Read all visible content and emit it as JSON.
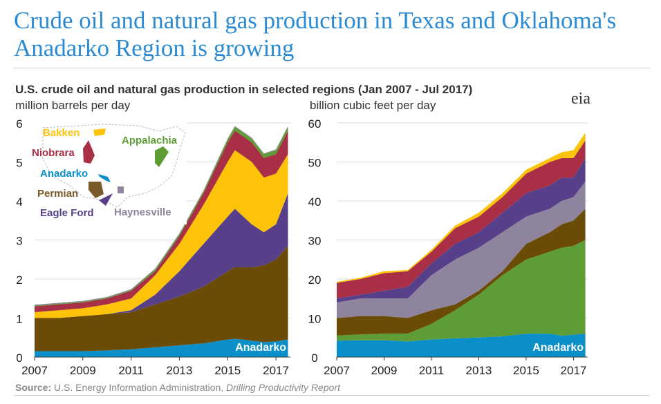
{
  "headline": "Crude oil and natural gas production in Texas and Oklahoma's Anadarko Region is growing",
  "logo": "eia",
  "source": {
    "label": "Source:",
    "text": " U.S. Energy Information Administration, ",
    "italic": "Drilling Productivity Report"
  },
  "colors": {
    "Anadarko": "#0a8fc9",
    "Permian": "#6b4c07",
    "Eagle Ford": "#574089",
    "Bakken": "#fdc309",
    "Niobrara": "#a82f45",
    "Appalachia": "#5e9c35",
    "Haynesville": "#8f849e"
  },
  "map_labels": [
    "Bakken",
    "Niobrara",
    "Anadarko",
    "Permian",
    "Eagle Ford",
    "Appalachia",
    "Haynesville"
  ],
  "chart_data": [
    {
      "type": "area",
      "stacked": true,
      "title": "U.S. crude oil and natural gas production in selected regions (Jan 2007 - Jul 2017)",
      "ylabel": "million barrels per day",
      "ylim": [
        0,
        6
      ],
      "yticks": [
        "0",
        "1",
        "2",
        "3",
        "4",
        "5",
        "6"
      ],
      "xticks": [
        "2007",
        "2009",
        "2011",
        "2013",
        "2015",
        "2017"
      ],
      "xlim": [
        2007,
        2017.6
      ],
      "annotation": "Anadarko",
      "x": [
        2007,
        2008,
        2009,
        2010,
        2011,
        2012,
        2013,
        2014,
        2015,
        2015.3,
        2016,
        2016.5,
        2017,
        2017.5
      ],
      "series": [
        {
          "name": "Anadarko",
          "values": [
            0.15,
            0.15,
            0.15,
            0.17,
            0.2,
            0.25,
            0.3,
            0.35,
            0.45,
            0.47,
            0.42,
            0.38,
            0.4,
            0.45
          ]
        },
        {
          "name": "Permian",
          "values": [
            0.85,
            0.85,
            0.9,
            0.93,
            0.95,
            1.1,
            1.25,
            1.45,
            1.75,
            1.83,
            1.88,
            1.97,
            2.1,
            2.4
          ]
        },
        {
          "name": "Eagle Ford",
          "values": [
            0,
            0,
            0,
            0,
            0.05,
            0.25,
            0.65,
            1.1,
            1.4,
            1.5,
            1.1,
            0.85,
            0.9,
            1.35
          ]
        },
        {
          "name": "Bakken",
          "values": [
            0.15,
            0.2,
            0.2,
            0.25,
            0.3,
            0.5,
            0.7,
            1.0,
            1.4,
            1.5,
            1.6,
            1.4,
            1.3,
            1.0
          ]
        },
        {
          "name": "Niobrara",
          "values": [
            0.15,
            0.15,
            0.15,
            0.15,
            0.2,
            0.1,
            0.2,
            0.3,
            0.5,
            0.5,
            0.5,
            0.5,
            0.5,
            0.6
          ]
        },
        {
          "name": "Appalachia",
          "values": [
            0.02,
            0.02,
            0.02,
            0.02,
            0.02,
            0.05,
            0.05,
            0.05,
            0.08,
            0.1,
            0.1,
            0.1,
            0.1,
            0.1
          ]
        },
        {
          "name": "Haynesville",
          "values": [
            0.02,
            0.02,
            0.02,
            0.02,
            0.02,
            0.02,
            0.02,
            0.02,
            0.02,
            0.02,
            0.02,
            0.02,
            0.02,
            0.02
          ]
        }
      ]
    },
    {
      "type": "area",
      "stacked": true,
      "ylabel": "billion cubic feet per day",
      "ylim": [
        0,
        60
      ],
      "yticks": [
        "0",
        "10",
        "20",
        "30",
        "40",
        "50",
        "60"
      ],
      "xticks": [
        "2007",
        "2009",
        "2011",
        "2013",
        "2015",
        "2017"
      ],
      "xlim": [
        2007,
        2017.6
      ],
      "annotation": "Anadarko",
      "x": [
        2007,
        2008,
        2009,
        2010,
        2011,
        2012,
        2013,
        2014,
        2015,
        2016,
        2016.5,
        2017,
        2017.5
      ],
      "series": [
        {
          "name": "Anadarko",
          "values": [
            4.2,
            4.3,
            4.3,
            4.0,
            4.5,
            4.8,
            5.0,
            5.3,
            6.0,
            6.0,
            5.5,
            5.7,
            6.0
          ]
        },
        {
          "name": "Appalachia",
          "values": [
            1.3,
            1.5,
            1.7,
            2.0,
            4.0,
            7.2,
            11,
            15.7,
            19,
            21,
            22.5,
            22.8,
            24
          ]
        },
        {
          "name": "Permian",
          "values": [
            4.5,
            4.7,
            4.5,
            4,
            3.5,
            1.5,
            1,
            1,
            4,
            5,
            6,
            6.5,
            8
          ]
        },
        {
          "name": "Haynesville",
          "values": [
            4,
            4.5,
            4.5,
            5,
            9,
            11.5,
            11,
            10,
            7,
            6,
            6,
            6,
            7
          ]
        },
        {
          "name": "Eagle Ford",
          "values": [
            1,
            1,
            2,
            3,
            3,
            4,
            4,
            5,
            6,
            6,
            6,
            5,
            6
          ]
        },
        {
          "name": "Niobrara",
          "values": [
            4,
            4,
            4.5,
            4,
            3,
            4,
            4,
            4,
            5,
            6,
            5,
            5,
            4.5
          ]
        },
        {
          "name": "Bakken",
          "values": [
            0.3,
            0.3,
            0.5,
            0.3,
            0.5,
            0.7,
            1,
            1,
            1,
            1,
            1.5,
            2,
            2
          ]
        }
      ]
    }
  ]
}
